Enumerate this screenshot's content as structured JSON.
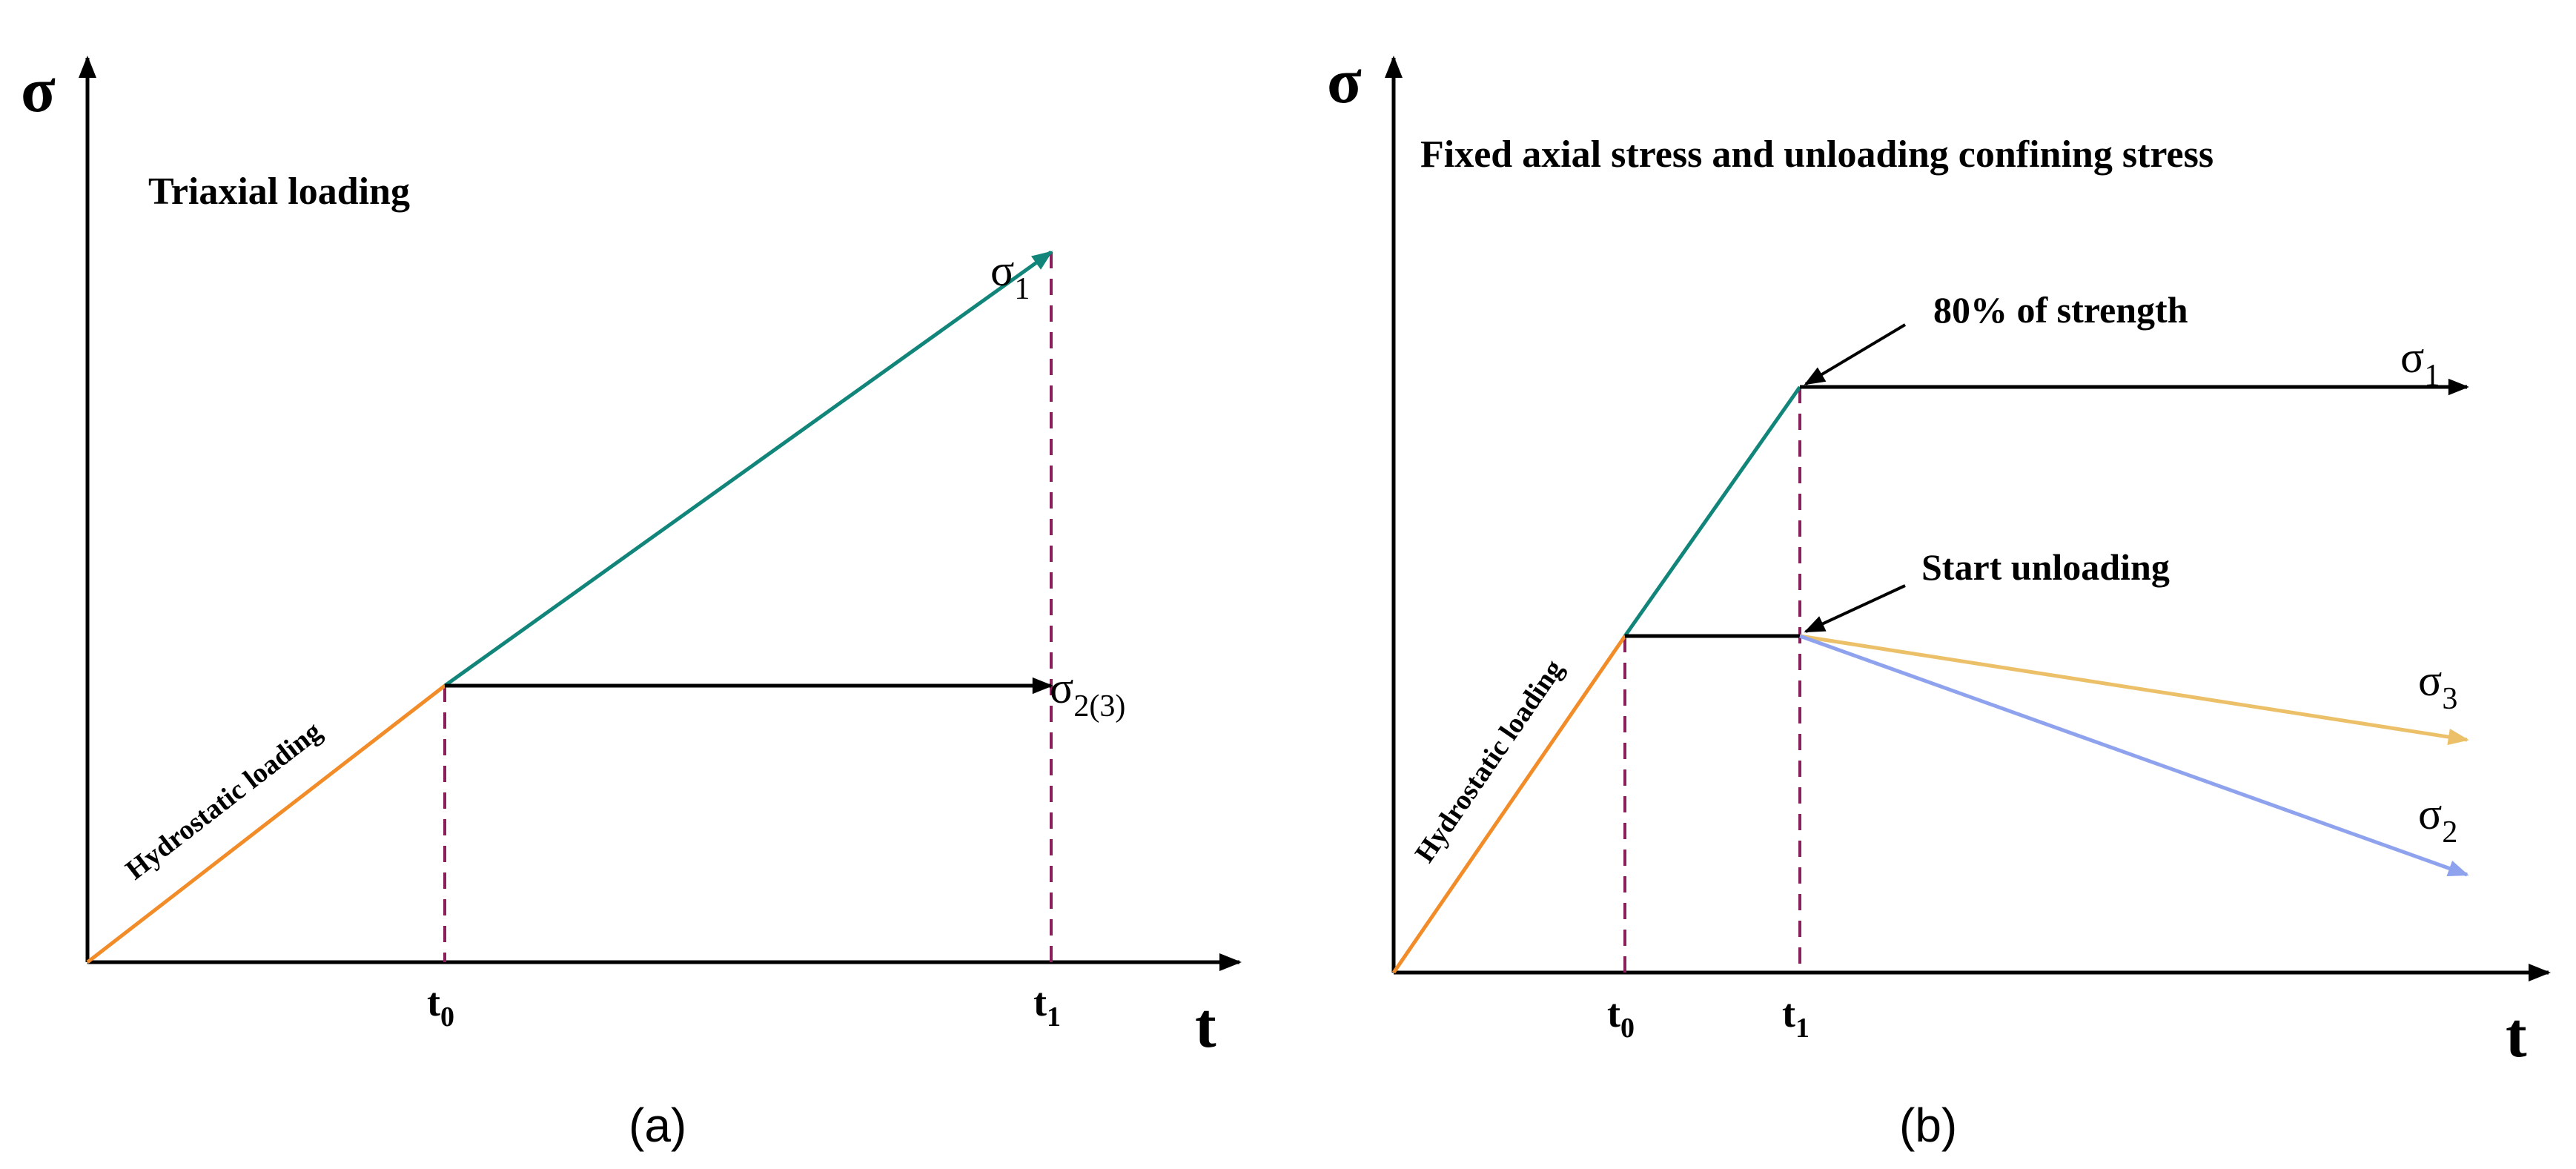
{
  "colors": {
    "axis": "#000000",
    "hydrostatic": "#f28c28",
    "teal": "#12857b",
    "black": "#000000",
    "yellow": "#ecc068",
    "blue": "#8ea2ee",
    "dashed": "#8a1f5c"
  },
  "panel_a": {
    "y_axis_label": "σ",
    "x_axis_label": "t",
    "title": "Triaxial loading",
    "diagonal_label": "Hydrostatic loading",
    "t0": {
      "base": "t",
      "sub": "0"
    },
    "t1": {
      "base": "t",
      "sub": "1"
    },
    "sigma1": {
      "base": "σ",
      "sub": "1"
    },
    "sigma23": {
      "base": "σ",
      "sub": "2(3)"
    },
    "caption": "(a)"
  },
  "panel_b": {
    "y_axis_label": "σ",
    "x_axis_label": "t",
    "title": "Fixed axial stress and unloading confining stress",
    "diagonal_label": "Hydrostatic loading",
    "annotation_strength": "80% of strength",
    "annotation_unloading": "Start unloading",
    "t0": {
      "base": "t",
      "sub": "0"
    },
    "t1": {
      "base": "t",
      "sub": "1"
    },
    "sigma1": {
      "base": "σ",
      "sub": "1"
    },
    "sigma2": {
      "base": "σ",
      "sub": "2"
    },
    "sigma3": {
      "base": "σ",
      "sub": "3"
    },
    "caption": "(b)"
  }
}
